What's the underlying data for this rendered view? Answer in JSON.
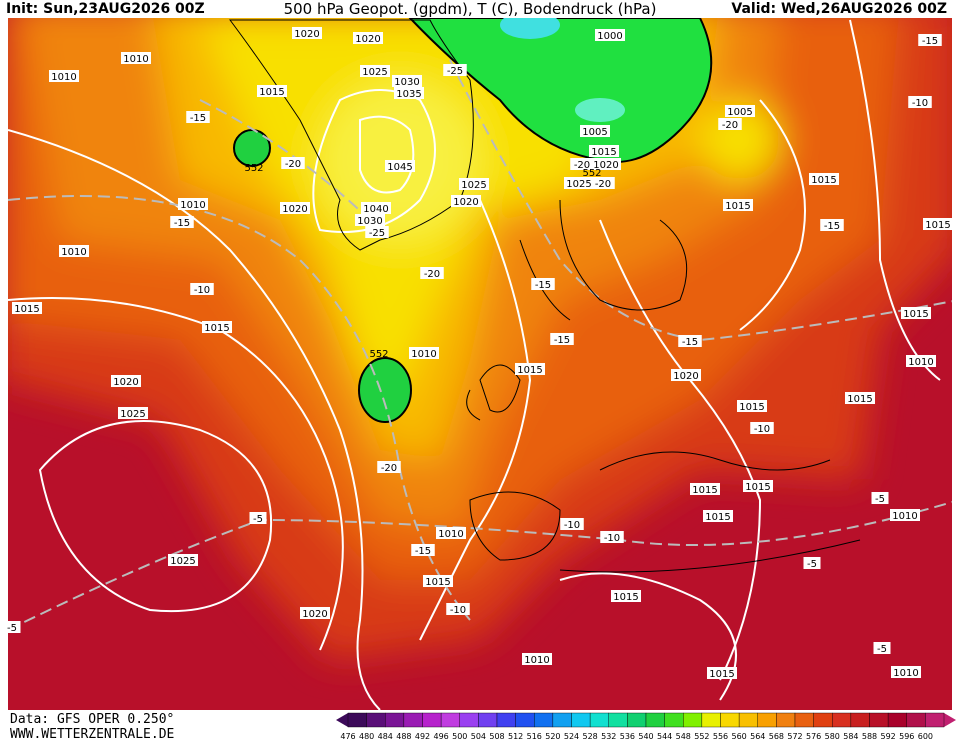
{
  "header": {
    "init": "Init: Sun,23AUG2026 00Z",
    "title": "500 hPa Geopot. (gpdm), T (C), Bodendruck (hPa)",
    "valid": "Valid: Wed,26AUG2026 00Z"
  },
  "footer": {
    "data": "Data: GFS OPER 0.250°",
    "site": "WWW.WETTERZENTRALE.DE"
  },
  "map": {
    "isobar_labels": [
      "1020",
      "1020",
      "1010",
      "1010",
      "1025",
      "1030",
      "1035",
      "1015",
      "1000",
      "1005",
      "1005",
      "1015",
      "1020",
      "1025",
      "1045",
      "1025",
      "1020",
      "1020",
      "1040",
      "1030",
      "1010",
      "1010",
      "1015",
      "1015",
      "1015",
      "1015",
      "1020",
      "1025",
      "1010",
      "1015",
      "1020",
      "1015",
      "1015",
      "1015",
      "1010",
      "1015",
      "1015",
      "1015",
      "1015",
      "1010",
      "1010",
      "1015",
      "1025",
      "1020",
      "1015",
      "1010",
      "1015",
      "1010"
    ],
    "temperature_labels": [
      "-15",
      "-10",
      "-20",
      "-15",
      "-20",
      "-25",
      "-25",
      "-20",
      "-15",
      "-10",
      "-15",
      "-15",
      "-15",
      "-15",
      "-10",
      "-20",
      "-15",
      "-10",
      "-10",
      "-10",
      "-5",
      "-5",
      "-5",
      "-5",
      "-5",
      "-20",
      "-20"
    ],
    "height_labels": [
      "552",
      "552",
      "552"
    ]
  },
  "colorbar": {
    "values": [
      476,
      480,
      484,
      488,
      492,
      496,
      500,
      504,
      508,
      512,
      516,
      520,
      524,
      528,
      532,
      536,
      540,
      544,
      548,
      552,
      556,
      560,
      564,
      568,
      572,
      576,
      580,
      584,
      588,
      592,
      596,
      600
    ],
    "colors": [
      "#3c0a5a",
      "#5a0f78",
      "#7a1596",
      "#9a1cb4",
      "#b622cc",
      "#c03ce0",
      "#9a40f0",
      "#7040f0",
      "#4040f0",
      "#2050f0",
      "#1070f0",
      "#10a0f0",
      "#10c8f0",
      "#10e0d0",
      "#10e0a0",
      "#10d070",
      "#20d040",
      "#40e020",
      "#80f000",
      "#e8f000",
      "#f8d800",
      "#f8c000",
      "#f8a000",
      "#f08010",
      "#e86010",
      "#e04010",
      "#d83020",
      "#c82020",
      "#b81028",
      "#a8002a",
      "#b0104a",
      "#c02070"
    ]
  }
}
